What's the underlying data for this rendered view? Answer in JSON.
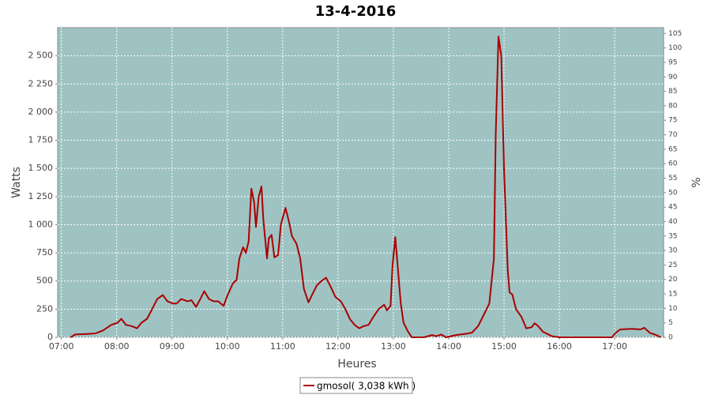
{
  "chart_data": {
    "type": "line",
    "title": "13-4-2016",
    "x_label": "Heures",
    "y_label": "Watts",
    "y2_label": "%",
    "background": "#9fc3c3",
    "grid": true,
    "legend": "bottom",
    "xlim": [
      "06:56",
      "17:53"
    ],
    "xticks": [
      "07:00",
      "08:00",
      "09:00",
      "10:00",
      "11:00",
      "12:00",
      "13:00",
      "14:00",
      "15:00",
      "16:00",
      "17:00"
    ],
    "ylim": [
      0,
      2750
    ],
    "yticks": [
      0,
      250,
      500,
      750,
      {
        "value": 1000,
        "label": "1 000"
      },
      {
        "value": 1250,
        "label": "1 250"
      },
      {
        "value": 1500,
        "label": "1 500"
      },
      {
        "value": 1750,
        "label": "1 750"
      },
      {
        "value": 2000,
        "label": "2 000"
      },
      {
        "value": 2250,
        "label": "2 250"
      },
      {
        "value": 2500,
        "label": "2 500"
      }
    ],
    "y2lim": [
      0,
      107
    ],
    "y2ticks": [
      0,
      5,
      10,
      15,
      20,
      25,
      30,
      35,
      40,
      45,
      50,
      55,
      60,
      65,
      70,
      75,
      80,
      85,
      90,
      95,
      100,
      105
    ],
    "x": [
      "07:10",
      "07:15",
      "07:28",
      "07:37",
      "07:45",
      "07:54",
      "08:01",
      "08:05",
      "08:10",
      "08:16",
      "08:22",
      "08:27",
      "08:33",
      "08:39",
      "08:44",
      "08:50",
      "08:55",
      "09:01",
      "09:05",
      "09:10",
      "09:17",
      "09:21",
      "09:26",
      "09:30",
      "09:35",
      "09:40",
      "09:45",
      "09:50",
      "09:56",
      "10:00",
      "10:06",
      "10:10",
      "10:13",
      "10:17",
      "10:20",
      "10:23",
      "10:26",
      "10:29",
      "10:31",
      "10:34",
      "10:37",
      "10:39",
      "10:43",
      "10:45",
      "10:48",
      "10:51",
      "10:55",
      "10:58",
      "11:03",
      "11:07",
      "11:10",
      "11:15",
      "11:19",
      "11:23",
      "11:28",
      "11:32",
      "11:37",
      "11:42",
      "11:47",
      "11:52",
      "11:57",
      "12:03",
      "12:08",
      "12:13",
      "12:18",
      "12:23",
      "12:28",
      "12:33",
      "12:39",
      "12:44",
      "12:50",
      "12:53",
      "12:57",
      "12:59",
      "13:02",
      "13:04",
      "13:08",
      "13:11",
      "13:16",
      "13:20",
      "13:33",
      "13:42",
      "13:46",
      "13:52",
      "13:57",
      "14:08",
      "14:17",
      "14:25",
      "14:32",
      "14:38",
      "14:44",
      "14:49",
      "14:51",
      "14:54",
      "14:57",
      "15:00",
      "15:04",
      "15:06",
      "15:09",
      "15:13",
      "15:19",
      "15:24",
      "15:30",
      "15:33",
      "15:37",
      "15:42",
      "15:47",
      "15:52",
      "16:00",
      "16:57",
      "17:01",
      "17:06",
      "17:19",
      "17:28",
      "17:32",
      "17:38",
      "17:45",
      "17:50"
    ],
    "series": [
      {
        "name": "gmosol( 3,038 kWh )",
        "color": "#aa0000",
        "values": [
          0,
          25,
          30,
          35,
          60,
          110,
          130,
          165,
          110,
          100,
          80,
          130,
          165,
          260,
          340,
          375,
          320,
          300,
          300,
          340,
          320,
          330,
          270,
          330,
          410,
          340,
          320,
          320,
          280,
          370,
          480,
          510,
          700,
          800,
          750,
          850,
          1320,
          1200,
          980,
          1250,
          1340,
          1050,
          700,
          880,
          910,
          710,
          730,
          1000,
          1150,
          1020,
          900,
          830,
          700,
          430,
          310,
          380,
          460,
          500,
          530,
          450,
          360,
          320,
          250,
          160,
          110,
          80,
          100,
          110,
          190,
          250,
          290,
          240,
          280,
          630,
          890,
          700,
          300,
          130,
          50,
          0,
          0,
          20,
          10,
          25,
          0,
          20,
          30,
          40,
          100,
          200,
          300,
          700,
          1800,
          2670,
          2500,
          1500,
          600,
          400,
          380,
          250,
          180,
          80,
          90,
          125,
          100,
          50,
          30,
          10,
          0,
          0,
          40,
          70,
          75,
          70,
          85,
          40,
          20,
          0
        ]
      }
    ]
  }
}
